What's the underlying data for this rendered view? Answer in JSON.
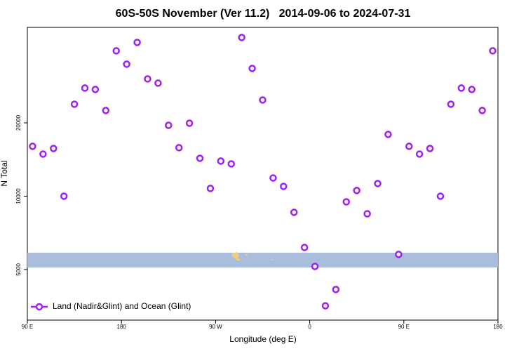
{
  "chart_data": {
    "type": "scatter",
    "title": "60S-50S November (Ver 11.2)   2014-09-06 to 2024-07-31",
    "x_label": "Longitude (deg E)",
    "y_label": "N Total",
    "xlim": [
      90,
      540
    ],
    "xticks": [
      {
        "value": 90,
        "label": "90 E"
      },
      180,
      {
        "value": 270,
        "label": "90 W"
      },
      {
        "value": 360,
        "label": "0"
      },
      {
        "value": 450,
        "label": "90 E"
      },
      {
        "value": 540,
        "label": "180"
      }
    ],
    "ylim": [
      3100,
      49300
    ],
    "yticks": [
      5000,
      10000,
      20000
    ],
    "y_scale": "log",
    "legend": "bottom-left",
    "series": [
      {
        "name": "Land (Nadir&Glint) and Ocean (Glint)",
        "color": "#a020f0",
        "x": [
          95,
          105,
          115,
          125,
          135,
          145,
          155,
          165,
          175,
          185,
          195,
          205,
          215,
          225,
          235,
          245,
          255,
          265,
          275,
          285,
          295,
          305,
          315,
          325,
          335,
          345,
          355,
          365,
          375,
          385,
          395,
          405,
          415,
          425,
          435,
          445,
          455,
          465,
          475,
          485,
          495,
          505,
          515,
          525,
          535
        ],
        "values": [
          16020,
          14890,
          15700,
          10000,
          23850,
          27790,
          27420,
          22470,
          39500,
          34830,
          42760,
          30290,
          29110,
          19540,
          15810,
          19930,
          14310,
          10760,
          13940,
          13570,
          44800,
          33450,
          24820,
          11880,
          10970,
          8585,
          6160,
          5150,
          3550,
          4140,
          9480,
          10550,
          8470,
          11270,
          17930,
          5770,
          16020,
          14890,
          15700,
          10000,
          23850,
          27790,
          27420,
          22470,
          39500
        ]
      }
    ]
  }
}
